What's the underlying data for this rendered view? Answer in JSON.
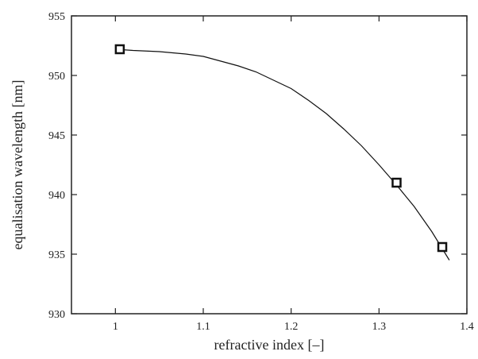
{
  "chart_data": {
    "type": "line",
    "title": "",
    "xlabel": "refractive index [–]",
    "ylabel": "equalisation wavelength [nm]",
    "xlim": [
      0.95,
      1.4
    ],
    "ylim": [
      930,
      955
    ],
    "xticks": [
      1,
      1.1,
      1.2,
      1.3,
      1.4
    ],
    "xtick_labels": [
      "1",
      "1.1",
      "1.2",
      "1.3",
      "1.4"
    ],
    "yticks": [
      930,
      935,
      940,
      945,
      950,
      955
    ],
    "ytick_labels": [
      "930",
      "935",
      "940",
      "945",
      "950",
      "955"
    ],
    "grid": false,
    "legend": "none",
    "series": [
      {
        "kind": "line",
        "color": "#111111",
        "x": [
          1.0,
          1.02,
          1.05,
          1.08,
          1.1,
          1.12,
          1.14,
          1.16,
          1.18,
          1.2,
          1.22,
          1.24,
          1.26,
          1.28,
          1.3,
          1.32,
          1.34,
          1.36,
          1.38
        ],
        "y": [
          952.2,
          952.1,
          952.0,
          951.8,
          951.6,
          951.2,
          950.8,
          950.3,
          949.6,
          948.9,
          947.9,
          946.8,
          945.5,
          944.1,
          942.5,
          940.8,
          939.0,
          936.9,
          934.5
        ]
      },
      {
        "kind": "markers",
        "marker": "square",
        "color": "#111111",
        "x": [
          1.005,
          1.32,
          1.372
        ],
        "y": [
          952.2,
          941.0,
          935.6
        ]
      }
    ]
  }
}
